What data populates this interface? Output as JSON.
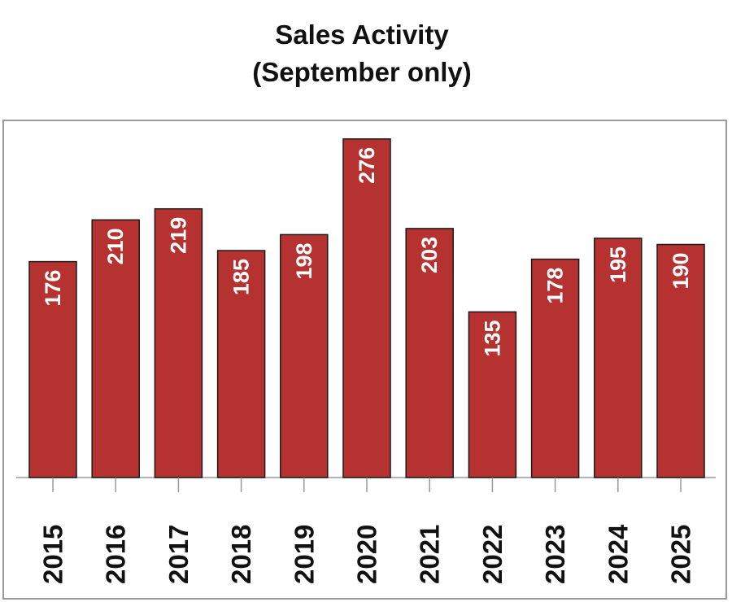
{
  "chart_data": {
    "type": "bar",
    "title_lines": [
      "Sales Activity",
      "(September only)"
    ],
    "categories": [
      "2015",
      "2016",
      "2017",
      "2018",
      "2019",
      "2020",
      "2021",
      "2022",
      "2023",
      "2024",
      "2025"
    ],
    "values": [
      176,
      210,
      219,
      185,
      198,
      276,
      203,
      135,
      178,
      195,
      190
    ],
    "ylim": [
      0,
      290
    ],
    "xlabel": "",
    "ylabel": "",
    "grid": false,
    "legend": "none",
    "data_labels": true,
    "bar_color": "#B53231",
    "bar_outline_color": "#1a1a1a",
    "frame_color": "#9a9a9a",
    "label_color": "#ffffff",
    "tick_label_color": "#111111"
  }
}
